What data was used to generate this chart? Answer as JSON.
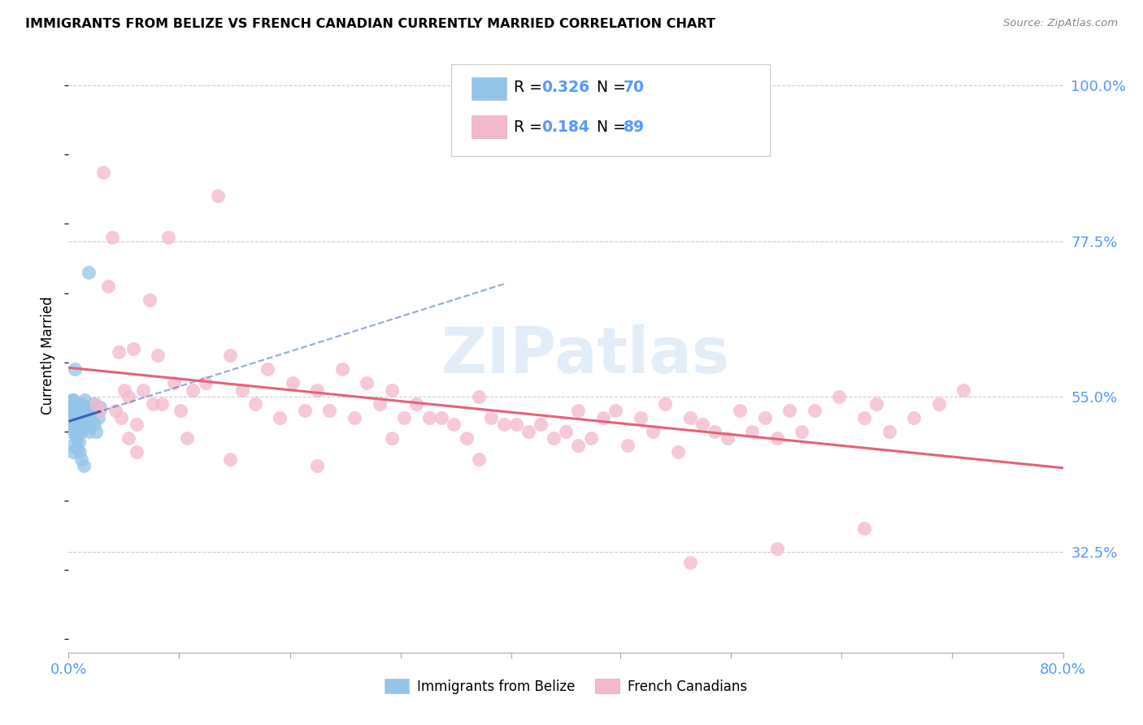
{
  "title": "IMMIGRANTS FROM BELIZE VS FRENCH CANADIAN CURRENTLY MARRIED CORRELATION CHART",
  "source": "Source: ZipAtlas.com",
  "ylabel": "Currently Married",
  "x_min": 0.0,
  "x_max": 0.8,
  "y_min": 0.18,
  "y_max": 1.04,
  "y_ticks": [
    0.325,
    0.55,
    0.775,
    1.0
  ],
  "y_tick_labels": [
    "32.5%",
    "55.0%",
    "77.5%",
    "100.0%"
  ],
  "x_tick_positions": [
    0.0,
    0.089,
    0.178,
    0.267,
    0.356,
    0.444,
    0.533,
    0.622,
    0.711,
    0.8
  ],
  "belize_color": "#94c4e8",
  "belize_line_color": "#3366bb",
  "french_color": "#f4b8cc",
  "french_line_color": "#e8607a",
  "belize_R": 0.326,
  "belize_N": 70,
  "french_R": 0.184,
  "french_N": 89,
  "watermark": "ZIPatlas",
  "background_color": "#ffffff",
  "grid_color": "#cccccc",
  "tick_label_color": "#5599ff",
  "legend_label_belize": "Immigrants from Belize",
  "legend_label_french": "French Canadians",
  "belize_x": [
    0.001,
    0.001,
    0.002,
    0.002,
    0.002,
    0.002,
    0.002,
    0.003,
    0.003,
    0.003,
    0.003,
    0.003,
    0.004,
    0.004,
    0.004,
    0.004,
    0.005,
    0.005,
    0.005,
    0.005,
    0.005,
    0.006,
    0.006,
    0.006,
    0.006,
    0.007,
    0.007,
    0.007,
    0.007,
    0.008,
    0.008,
    0.008,
    0.009,
    0.009,
    0.009,
    0.01,
    0.01,
    0.01,
    0.011,
    0.011,
    0.011,
    0.012,
    0.012,
    0.013,
    0.013,
    0.013,
    0.014,
    0.014,
    0.015,
    0.015,
    0.016,
    0.016,
    0.017,
    0.018,
    0.019,
    0.02,
    0.021,
    0.022,
    0.024,
    0.025,
    0.016,
    0.005,
    0.003,
    0.004,
    0.006,
    0.007,
    0.008,
    0.009,
    0.01,
    0.012
  ],
  "belize_y": [
    0.535,
    0.515,
    0.54,
    0.5,
    0.52,
    0.53,
    0.51,
    0.525,
    0.545,
    0.505,
    0.515,
    0.535,
    0.53,
    0.545,
    0.52,
    0.51,
    0.52,
    0.54,
    0.51,
    0.53,
    0.505,
    0.525,
    0.515,
    0.54,
    0.495,
    0.52,
    0.5,
    0.535,
    0.515,
    0.53,
    0.51,
    0.525,
    0.535,
    0.505,
    0.515,
    0.52,
    0.5,
    0.535,
    0.515,
    0.525,
    0.54,
    0.51,
    0.53,
    0.545,
    0.525,
    0.505,
    0.52,
    0.51,
    0.53,
    0.515,
    0.5,
    0.52,
    0.51,
    0.525,
    0.53,
    0.54,
    0.51,
    0.5,
    0.52,
    0.535,
    0.73,
    0.59,
    0.48,
    0.47,
    0.49,
    0.475,
    0.485,
    0.47,
    0.46,
    0.45
  ],
  "french_x": [
    0.022,
    0.025,
    0.028,
    0.032,
    0.035,
    0.038,
    0.04,
    0.042,
    0.045,
    0.048,
    0.052,
    0.055,
    0.06,
    0.065,
    0.068,
    0.072,
    0.075,
    0.08,
    0.085,
    0.09,
    0.095,
    0.1,
    0.11,
    0.12,
    0.13,
    0.14,
    0.15,
    0.16,
    0.17,
    0.18,
    0.19,
    0.2,
    0.21,
    0.22,
    0.23,
    0.24,
    0.25,
    0.26,
    0.27,
    0.28,
    0.29,
    0.3,
    0.31,
    0.32,
    0.33,
    0.34,
    0.35,
    0.36,
    0.37,
    0.38,
    0.39,
    0.4,
    0.41,
    0.42,
    0.43,
    0.44,
    0.45,
    0.46,
    0.47,
    0.48,
    0.49,
    0.5,
    0.51,
    0.52,
    0.53,
    0.54,
    0.55,
    0.56,
    0.57,
    0.58,
    0.59,
    0.6,
    0.62,
    0.64,
    0.65,
    0.66,
    0.68,
    0.7,
    0.72,
    0.048,
    0.055,
    0.13,
    0.2,
    0.26,
    0.33,
    0.41,
    0.5,
    0.57,
    0.64
  ],
  "french_y": [
    0.54,
    0.53,
    0.875,
    0.71,
    0.78,
    0.53,
    0.615,
    0.52,
    0.56,
    0.55,
    0.62,
    0.51,
    0.56,
    0.69,
    0.54,
    0.61,
    0.54,
    0.78,
    0.57,
    0.53,
    0.49,
    0.56,
    0.57,
    0.84,
    0.61,
    0.56,
    0.54,
    0.59,
    0.52,
    0.57,
    0.53,
    0.56,
    0.53,
    0.59,
    0.52,
    0.57,
    0.54,
    0.56,
    0.52,
    0.54,
    0.52,
    0.52,
    0.51,
    0.49,
    0.55,
    0.52,
    0.51,
    0.51,
    0.5,
    0.51,
    0.49,
    0.5,
    0.53,
    0.49,
    0.52,
    0.53,
    0.48,
    0.52,
    0.5,
    0.54,
    0.47,
    0.52,
    0.51,
    0.5,
    0.49,
    0.53,
    0.5,
    0.52,
    0.49,
    0.53,
    0.5,
    0.53,
    0.55,
    0.52,
    0.54,
    0.5,
    0.52,
    0.54,
    0.56,
    0.49,
    0.47,
    0.46,
    0.45,
    0.49,
    0.46,
    0.48,
    0.31,
    0.33,
    0.36
  ]
}
